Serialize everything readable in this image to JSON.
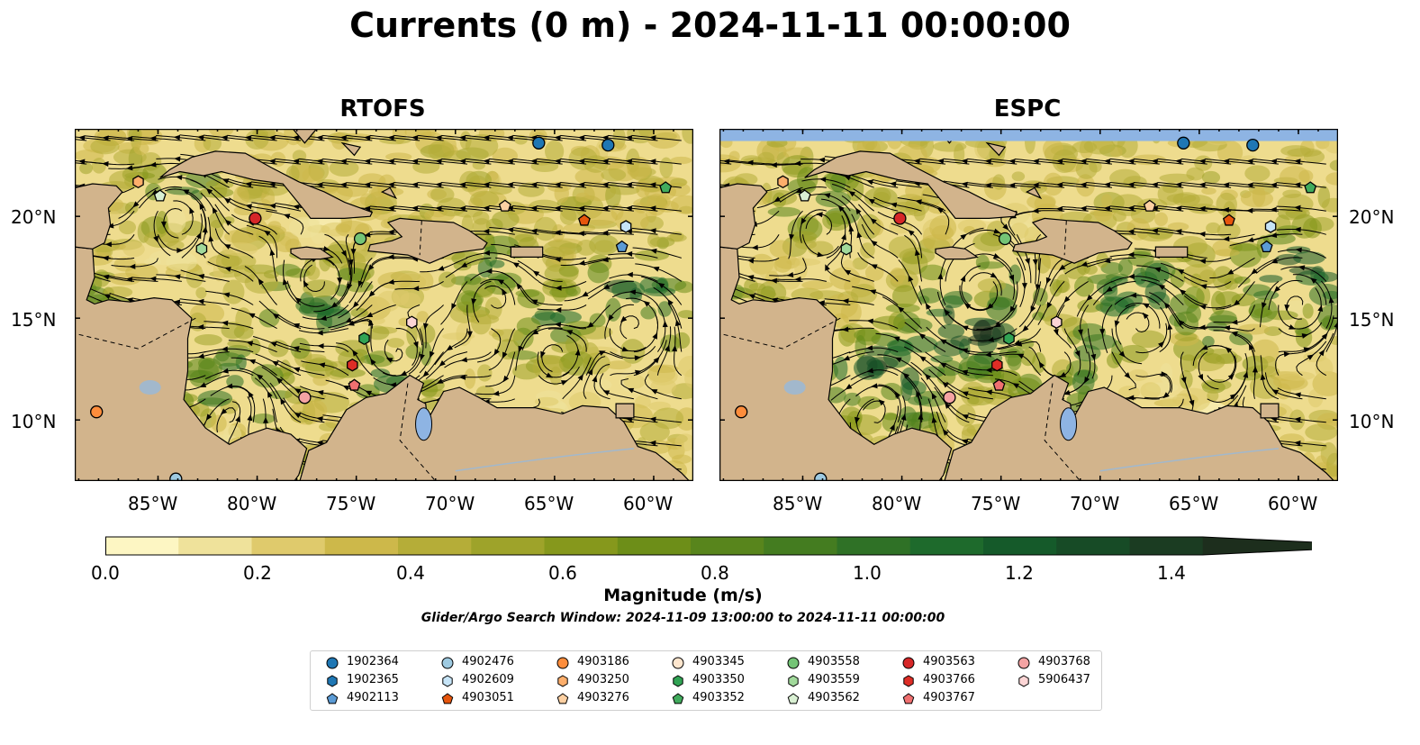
{
  "title": "Currents (0 m) - 2024-11-11 00:00:00",
  "panels": [
    {
      "name": "RTOFS",
      "lat_labels_side": "left"
    },
    {
      "name": "ESPC",
      "lat_labels_side": "right"
    }
  ],
  "map_extent": {
    "lon_min": -89.2,
    "lon_max": -58.0,
    "lat_min": 7.0,
    "lat_max": 24.3
  },
  "lon_ticks": [
    -85,
    -80,
    -75,
    -70,
    -65,
    -60
  ],
  "lon_tick_labels": [
    "85°W",
    "80°W",
    "75°W",
    "70°W",
    "65°W",
    "60°W"
  ],
  "lat_ticks": [
    10,
    15,
    20
  ],
  "lat_tick_labels": [
    "10°N",
    "15°N",
    "20°N"
  ],
  "colorbar": {
    "label": "Magnitude (m/s)",
    "ticks": [
      "0.0",
      "0.2",
      "0.4",
      "0.6",
      "0.8",
      "1.0",
      "1.2",
      "1.4"
    ],
    "range": [
      0.0,
      1.5
    ],
    "extend": "max",
    "colors": [
      "#fdf6c3",
      "#efe29b",
      "#dfca6c",
      "#cdb84a",
      "#b5ad38",
      "#9ea32a",
      "#86981c",
      "#6d8e18",
      "#58851c",
      "#447c20",
      "#2f7126",
      "#1e6a2c",
      "#155a2a",
      "#174b26",
      "#1b3c22",
      "#1d2e1d"
    ]
  },
  "search_window": "Glider/Argo Search Window: 2024-11-09 13:00:00 to 2024-11-11 00:00:00",
  "colors": {
    "land": "#d2b48c",
    "water_feature": "#8eb4e3",
    "river": "#a2b8cc"
  },
  "legend": [
    {
      "id": "1902364",
      "marker": "circle",
      "color": "#1f77b4"
    },
    {
      "id": "1902365",
      "marker": "hexagon",
      "color": "#1f77b4"
    },
    {
      "id": "4902113",
      "marker": "pentagon",
      "color": "#5b9bd5"
    },
    {
      "id": "4902476",
      "marker": "circle",
      "color": "#9ecae1"
    },
    {
      "id": "4902609",
      "marker": "hexagon",
      "color": "#c6e4f7"
    },
    {
      "id": "4903051",
      "marker": "pentagon",
      "color": "#e6550d"
    },
    {
      "id": "4903186",
      "marker": "circle",
      "color": "#fd8d3c"
    },
    {
      "id": "4903250",
      "marker": "hexagon",
      "color": "#fdae6b"
    },
    {
      "id": "4903276",
      "marker": "pentagon",
      "color": "#fdd0a2"
    },
    {
      "id": "4903345",
      "marker": "circle",
      "color": "#fee6ce"
    },
    {
      "id": "4903350",
      "marker": "hexagon",
      "color": "#31a354"
    },
    {
      "id": "4903352",
      "marker": "pentagon",
      "color": "#41ab5d"
    },
    {
      "id": "4903558",
      "marker": "circle",
      "color": "#74c476"
    },
    {
      "id": "4903559",
      "marker": "hexagon",
      "color": "#a1d99b"
    },
    {
      "id": "4903562",
      "marker": "pentagon",
      "color": "#d9f0d3"
    },
    {
      "id": "4903563",
      "marker": "circle",
      "color": "#d62728"
    },
    {
      "id": "4903766",
      "marker": "hexagon",
      "color": "#de2d26"
    },
    {
      "id": "4903767",
      "marker": "pentagon",
      "color": "#f07070"
    },
    {
      "id": "4903768",
      "marker": "circle",
      "color": "#f4a3a3"
    },
    {
      "id": "5906437",
      "marker": "hexagon",
      "color": "#fcd5d5"
    }
  ],
  "floats": [
    {
      "id": "1902364",
      "lon": -65.8,
      "lat": 23.6
    },
    {
      "id": "1902364",
      "lon": -62.3,
      "lat": 23.5
    },
    {
      "id": "4903250",
      "lon": -86.0,
      "lat": 21.7
    },
    {
      "id": "4903562",
      "lon": -84.9,
      "lat": 21.0
    },
    {
      "id": "4903563",
      "lon": -80.1,
      "lat": 19.9
    },
    {
      "id": "4903559",
      "lon": -82.8,
      "lat": 18.4
    },
    {
      "id": "4903558",
      "lon": -74.8,
      "lat": 18.9
    },
    {
      "id": "4903276",
      "lon": -67.5,
      "lat": 20.5
    },
    {
      "id": "4903051",
      "lon": -63.5,
      "lat": 19.8
    },
    {
      "id": "4903352",
      "lon": -59.4,
      "lat": 21.4
    },
    {
      "id": "4902609",
      "lon": -61.4,
      "lat": 19.5
    },
    {
      "id": "4902113",
      "lon": -61.6,
      "lat": 18.5
    },
    {
      "id": "5906437",
      "lon": -72.2,
      "lat": 14.8
    },
    {
      "id": "4903350",
      "lon": -74.6,
      "lat": 14.0
    },
    {
      "id": "4903766",
      "lon": -75.2,
      "lat": 12.7
    },
    {
      "id": "4903767",
      "lon": -75.1,
      "lat": 11.7
    },
    {
      "id": "4903768",
      "lon": -77.6,
      "lat": 11.1
    },
    {
      "id": "4903186",
      "lon": -88.1,
      "lat": 10.4
    },
    {
      "id": "4902476",
      "lon": -84.1,
      "lat": 7.1
    }
  ]
}
